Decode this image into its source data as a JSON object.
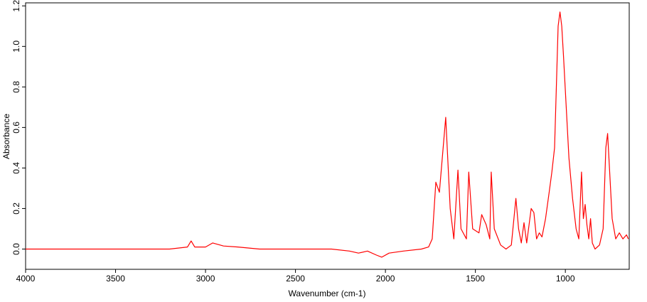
{
  "chart_data": {
    "type": "line",
    "xlabel": "Wavenumber (cm-1)",
    "ylabel": "Absorbance",
    "x": [
      4000,
      3500,
      3200,
      3100,
      3080,
      3060,
      3000,
      2960,
      2900,
      2820,
      2700,
      2300,
      2200,
      2150,
      2100,
      2050,
      2020,
      1980,
      1900,
      1800,
      1760,
      1740,
      1720,
      1700,
      1665,
      1640,
      1620,
      1597,
      1580,
      1550,
      1537,
      1515,
      1480,
      1465,
      1450,
      1440,
      1420,
      1412,
      1395,
      1360,
      1330,
      1300,
      1275,
      1260,
      1245,
      1230,
      1215,
      1190,
      1175,
      1160,
      1145,
      1130,
      1110,
      1090,
      1075,
      1060,
      1050,
      1040,
      1030,
      1020,
      1010,
      995,
      980,
      960,
      940,
      925,
      910,
      900,
      890,
      880,
      870,
      860,
      850,
      835,
      810,
      790,
      775,
      765,
      755,
      740,
      720,
      700,
      680,
      660,
      650
    ],
    "series": [
      {
        "name": "Absorbance",
        "color": "#ff0000",
        "values": [
          0.0,
          0.0,
          0.0,
          0.01,
          0.04,
          0.01,
          0.01,
          0.03,
          0.015,
          0.01,
          0.0,
          0.0,
          -0.01,
          -0.02,
          -0.01,
          -0.03,
          -0.04,
          -0.02,
          -0.01,
          0.0,
          0.01,
          0.05,
          0.33,
          0.28,
          0.65,
          0.2,
          0.05,
          0.39,
          0.1,
          0.05,
          0.38,
          0.1,
          0.08,
          0.17,
          0.14,
          0.12,
          0.05,
          0.38,
          0.1,
          0.02,
          0.0,
          0.02,
          0.25,
          0.1,
          0.03,
          0.13,
          0.03,
          0.2,
          0.18,
          0.05,
          0.08,
          0.06,
          0.15,
          0.28,
          0.38,
          0.5,
          0.8,
          1.1,
          1.17,
          1.1,
          0.95,
          0.7,
          0.45,
          0.25,
          0.1,
          0.05,
          0.38,
          0.15,
          0.22,
          0.12,
          0.05,
          0.15,
          0.03,
          0.0,
          0.02,
          0.1,
          0.5,
          0.57,
          0.4,
          0.15,
          0.05,
          0.08,
          0.05,
          0.07,
          0.05
        ]
      }
    ],
    "xlim": [
      4000,
      645
    ],
    "ylim": [
      -0.1,
      1.215
    ],
    "xticks": [
      4000,
      3500,
      3000,
      2500,
      2000,
      1500,
      1000
    ],
    "yticks": [
      {
        "value": 0,
        "label": "0.0"
      },
      0.2,
      0.4,
      0.6,
      0.8,
      {
        "value": 1,
        "label": "1.0"
      },
      1.2
    ],
    "grid": false
  }
}
